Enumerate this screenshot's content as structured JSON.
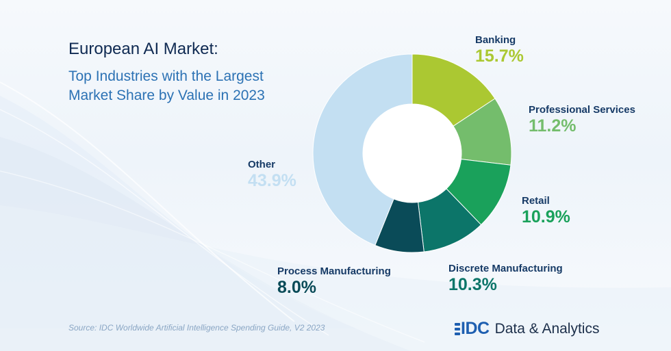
{
  "title": "European AI Market:",
  "subtitle": "Top Industries with the Largest Market Share by Value in 2023",
  "source": "Source: IDC Worldwide Artificial Intelligence Spending Guide, V2 2023",
  "logo": {
    "brand": "IDC",
    "text": "Data & Analytics"
  },
  "chart_data": {
    "type": "pie",
    "title": "European AI Market:",
    "subtitle": "Top Industries with the Largest Market Share by Value in 2023",
    "slices": [
      {
        "label": "Banking",
        "value": 15.7,
        "display": "15.7%",
        "color": "#abc832"
      },
      {
        "label": "Professional Services",
        "value": 11.2,
        "display": "11.2%",
        "color": "#74bd6c"
      },
      {
        "label": "Retail",
        "value": 10.9,
        "display": "10.9%",
        "color": "#1aa15b"
      },
      {
        "label": "Discrete Manufacturing",
        "value": 10.3,
        "display": "10.3%",
        "color": "#0c7569"
      },
      {
        "label": "Process Manufacturing",
        "value": 8.0,
        "display": "8.0%",
        "color": "#0a4b58"
      },
      {
        "label": "Other",
        "value": 43.9,
        "display": "43.9%",
        "color": "#c3dff2"
      }
    ],
    "label_colors": [
      "#abc832",
      "#74bd6c",
      "#1aa15b",
      "#0c7569",
      "#0a4b58",
      "#c3dff2"
    ]
  }
}
